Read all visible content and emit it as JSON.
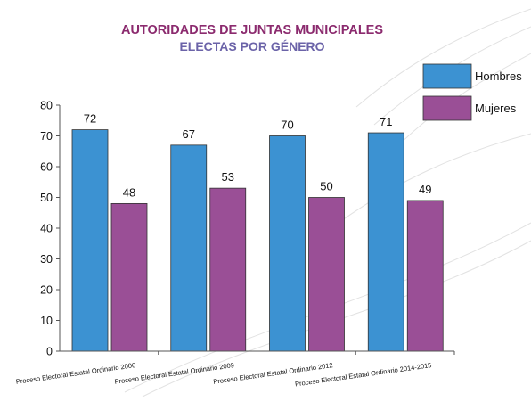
{
  "chart_data": {
    "type": "bar",
    "title": "AUTORIDADES DE JUNTAS MUNICIPALES",
    "subtitle": "ELECTAS POR GÉNERO",
    "categories": [
      "Proceso Electoral Estatal Ordinario 2006",
      "Proceso Electoral Estatal Ordinario 2009",
      "Proceso Electoral Estatal Ordinario 2012",
      "Proceso Electoral Estatal Ordinario 2014-2015"
    ],
    "series": [
      {
        "name": "Hombres",
        "values": [
          72,
          67,
          70,
          71
        ],
        "color": "#3c92d2"
      },
      {
        "name": "Mujeres",
        "values": [
          48,
          53,
          50,
          49
        ],
        "color": "#9a4f96"
      }
    ],
    "ylim": [
      0,
      80
    ],
    "yticks": [
      0,
      10,
      20,
      30,
      40,
      50,
      60,
      70,
      80
    ],
    "grid": false,
    "legend_position": "top-right",
    "data_labels": true
  }
}
